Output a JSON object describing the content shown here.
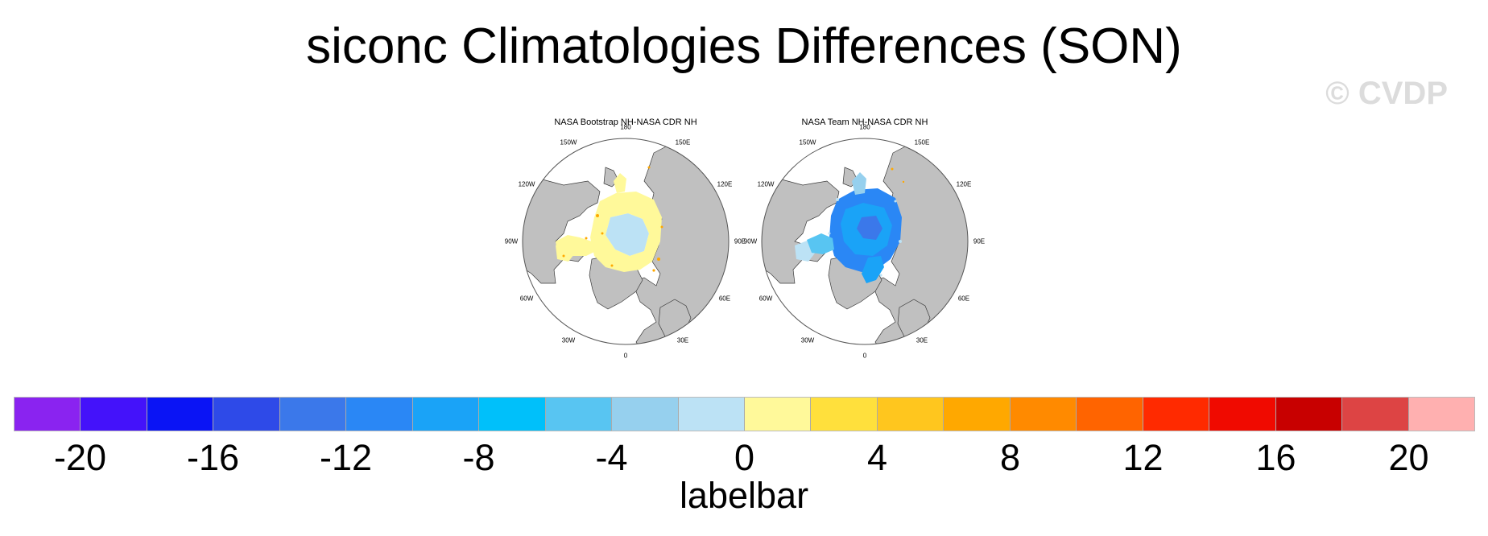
{
  "title": "siconc Climatologies Differences (SON)",
  "watermark": "© CVDP",
  "panels": [
    {
      "title": "NASA Bootstrap NH-NASA CDR NH",
      "pattern": "warm",
      "lon_labels": [
        "180",
        "150E",
        "120E",
        "90E",
        "60E",
        "30E",
        "0",
        "30W",
        "60W",
        "90W",
        "120W",
        "150W"
      ]
    },
    {
      "title": "NASA Team NH-NASA CDR NH",
      "pattern": "cool",
      "lon_labels": [
        "180",
        "150E",
        "120E",
        "90E",
        "60E",
        "30E",
        "0",
        "30W",
        "60W",
        "90W",
        "120W",
        "150W"
      ]
    }
  ],
  "labelbar": {
    "title": "labelbar",
    "colors": [
      "#8a23f0",
      "#4412fa",
      "#0a14f5",
      "#2e4ae8",
      "#3b78ea",
      "#2a87f5",
      "#1aa3f7",
      "#00c0fa",
      "#58c5f2",
      "#96d0ee",
      "#bce2f5",
      "#fff99a",
      "#ffe03c",
      "#ffc61e",
      "#ffa800",
      "#ff8a00",
      "#ff6400",
      "#ff2a00",
      "#f00a00",
      "#c80000",
      "#dd4444",
      "#ffb0b0"
    ],
    "tick_labels": [
      "-20",
      "-16",
      "-12",
      "-8",
      "-4",
      "0",
      "4",
      "8",
      "12",
      "16",
      "20"
    ]
  },
  "colors": {
    "land": "#c0c0c0",
    "ocean": "#ffffff",
    "coast": "#3a3a3a"
  }
}
